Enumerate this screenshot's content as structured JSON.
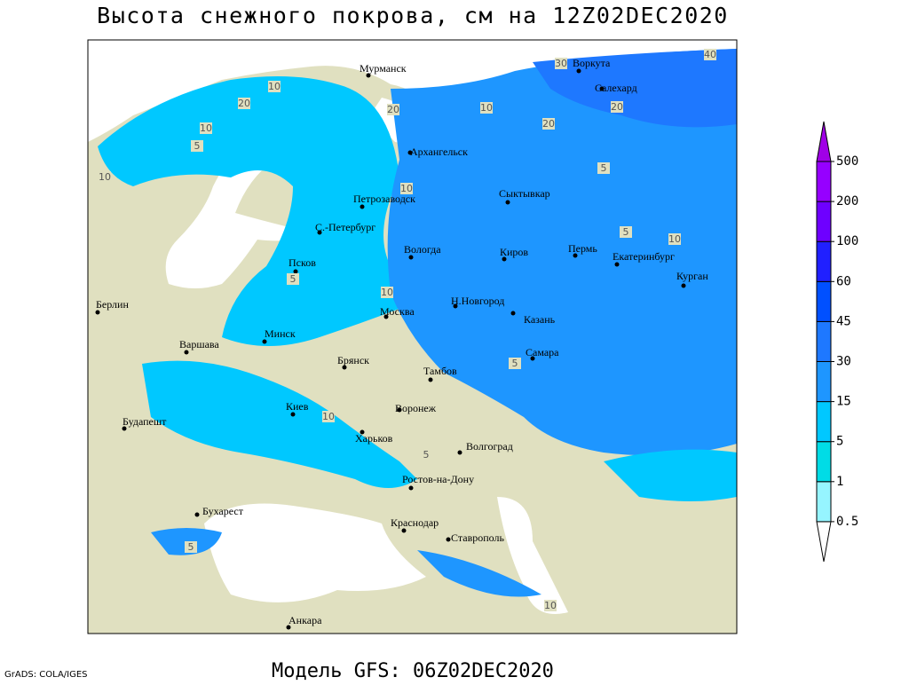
{
  "title": "Высота снежного покрова, см на 12Z02DEC2020",
  "footer": {
    "credit": "GrADS: COLA/IGES",
    "model": "Модель GFS: 06Z02DEC2020"
  },
  "cities": [
    "Мурманск",
    "Воркута",
    "Салехард",
    "Архангельск",
    "Сыктывкар",
    "Петрозаводск",
    "С.-Петербург",
    "Вологда",
    "Киров",
    "Пермь",
    "Екатеринбург",
    "Курган",
    "Псков",
    "Берлин",
    "Н.Новгород",
    "Москва",
    "Казань",
    "Варшава",
    "Минск",
    "Самара",
    "Брянск",
    "Тамбов",
    "Киев",
    "Воронеж",
    "Будапешт",
    "Харьков",
    "Волгоград",
    "Ростов-на-Дону",
    "Бухарест",
    "Краснодар",
    "Ставрополь",
    "Анкара"
  ],
  "contour_labels": [
    "40",
    "30",
    "10",
    "20",
    "20",
    "10",
    "10",
    "20",
    "5",
    "10",
    "20",
    "5",
    "10",
    "5",
    "10",
    "5",
    "10",
    "5",
    "10",
    "5",
    "5",
    "10"
  ],
  "colorbar": {
    "levels": [
      0.5,
      1,
      5,
      15,
      30,
      45,
      60,
      100,
      200,
      500
    ],
    "colors": [
      "#ffffff",
      "#96f5ff",
      "#00dce6",
      "#00c8ff",
      "#1e96ff",
      "#1e78ff",
      "#0050ff",
      "#2020ff",
      "#6e00ff",
      "#9600ff",
      "#a000e6"
    ]
  }
}
